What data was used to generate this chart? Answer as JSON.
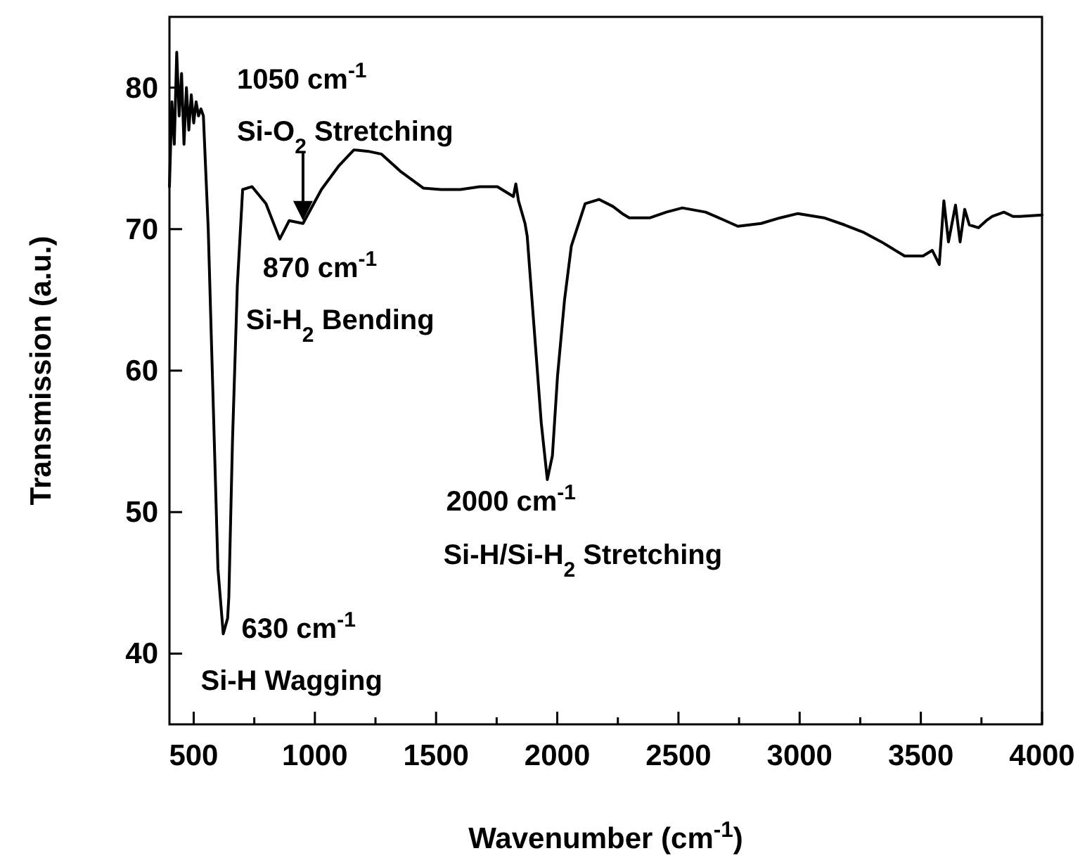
{
  "chart_data": {
    "type": "line",
    "xlabel": "Wavenumber (cm$^{-1}$)",
    "ylabel": "Transmission (a.u.)",
    "xlim": [
      400,
      4000
    ],
    "ylim": [
      35,
      85
    ],
    "xticks": [
      {
        "value": 500,
        "label": "500"
      },
      {
        "value": 750,
        "label": null
      },
      {
        "value": 1000,
        "label": "1000"
      },
      {
        "value": 1250,
        "label": null
      },
      {
        "value": 1500,
        "label": "1500"
      },
      {
        "value": 1750,
        "label": null
      },
      {
        "value": 2000,
        "label": "2000"
      },
      {
        "value": 2250,
        "label": null
      },
      {
        "value": 2500,
        "label": "2500"
      },
      {
        "value": 2750,
        "label": null
      },
      {
        "value": 3000,
        "label": "3000"
      },
      {
        "value": 3250,
        "label": null
      },
      {
        "value": 3500,
        "label": "3500"
      },
      {
        "value": 3750,
        "label": null
      },
      {
        "value": 4000,
        "label": "4000"
      }
    ],
    "yticks": [
      40,
      50,
      60,
      70,
      80
    ],
    "grid": false,
    "marker": "none",
    "line_style": "solid",
    "series": [
      {
        "color": "#000000",
        "x": [
          400,
          410,
          420,
          430,
          440,
          450,
          460,
          470,
          480,
          490,
          500,
          510,
          520,
          530,
          540,
          560,
          580,
          600,
          622,
          640,
          645,
          660,
          680,
          702,
          741,
          798,
          855,
          870,
          894,
          951,
          1027,
          1100,
          1161,
          1220,
          1275,
          1352,
          1447,
          1520,
          1600,
          1680,
          1753,
          1819,
          1829,
          1840,
          1867,
          1876,
          1905,
          1934,
          1959,
          1980,
          2001,
          2030,
          2058,
          2115,
          2172,
          2230,
          2268,
          2297,
          2383,
          2450,
          2516,
          2612,
          2680,
          2745,
          2841,
          2920,
          2993,
          3100,
          3185,
          3260,
          3337,
          3433,
          3509,
          3547,
          3576,
          3595,
          3614,
          3643,
          3662,
          3681,
          3700,
          3738,
          3770,
          3795,
          3843,
          3880,
          3909,
          4000
        ],
        "values": [
          73,
          79,
          76,
          82.5,
          78,
          81,
          76,
          80,
          77,
          79.5,
          77.5,
          79,
          78,
          78.5,
          78,
          70,
          58,
          46,
          41.4,
          42.5,
          44,
          55,
          66,
          72.8,
          73,
          71.8,
          69.3,
          69.8,
          70.6,
          70.4,
          72.8,
          74.5,
          75.6,
          75.5,
          75.3,
          74.1,
          72.9,
          72.8,
          72.8,
          73,
          73,
          72.3,
          73.2,
          72,
          70.4,
          69.5,
          62.9,
          56.3,
          52.3,
          54,
          59.6,
          65,
          68.8,
          71.8,
          72.1,
          71.6,
          71.1,
          70.8,
          70.8,
          71.2,
          71.5,
          71.2,
          70.7,
          70.2,
          70.4,
          70.8,
          71.1,
          70.8,
          70.3,
          69.8,
          69.1,
          68.1,
          68.1,
          68.5,
          67.5,
          72,
          69.1,
          71.7,
          69.1,
          71.4,
          70.3,
          70.1,
          70.6,
          70.9,
          71.2,
          70.9,
          70.9,
          71
        ]
      }
    ],
    "annotations": [
      {
        "text": "630 cm$^{-1}$",
        "x": 622,
        "y": 41.4
      },
      {
        "text": "Si-H Wagging",
        "x": 622,
        "y": 41.4
      },
      "1050 cm$^{-1}$",
      {
        "text": "Si-O$_{2}$ Stretching",
        "x": 951,
        "y": 70.4
      },
      {
        "text": "870 cm$^{-1}$",
        "x": 855,
        "y": 69.3
      },
      {
        "text": "Si-H$_{2}$ Bending",
        "x": 855,
        "y": 69.3
      },
      {
        "text": "2000 cm$^{-1}$",
        "x": 1959,
        "y": 52.3
      },
      {
        "text": "Si-H/Si-H$_{2}$ Stretching",
        "x": 1959,
        "y": 52.3
      }
    ]
  }
}
